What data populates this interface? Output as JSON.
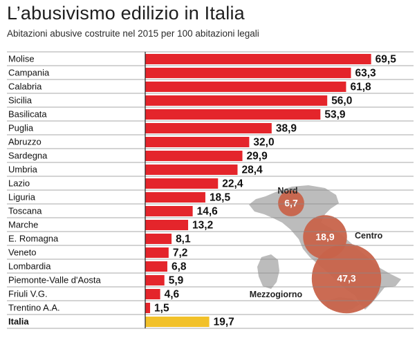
{
  "chart_data": {
    "type": "bar",
    "orientation": "horizontal",
    "title": "L’abusivismo edilizio in Italia",
    "subtitle": "Abitazioni abusive costruite nel 2015 per 100 abitazioni legali",
    "categories": [
      "Molise",
      "Campania",
      "Calabria",
      "Sicilia",
      "Basilicata",
      "Puglia",
      "Abruzzo",
      "Sardegna",
      "Umbria",
      "Lazio",
      "Liguria",
      "Toscana",
      "Marche",
      "E. Romagna",
      "Veneto",
      "Lombardia",
      "Piemonte-Valle d'Aosta",
      "Friuli V.G.",
      "Trentino A.A.",
      "Italia"
    ],
    "values": [
      69.5,
      63.3,
      61.8,
      56.0,
      53.9,
      38.9,
      32.0,
      29.9,
      28.4,
      22.4,
      18.5,
      14.6,
      13.2,
      8.1,
      7.2,
      6.8,
      5.9,
      4.6,
      1.5,
      19.7
    ],
    "value_labels": [
      "69,5",
      "63,3",
      "61,8",
      "56,0",
      "53,9",
      "38,9",
      "32,0",
      "29,9",
      "28,4",
      "22,4",
      "18,5",
      "14,6",
      "13,2",
      "8,1",
      "7,2",
      "6,8",
      "5,9",
      "4,6",
      "1,5",
      "19,7"
    ],
    "highlight_category": "Italia",
    "colors": {
      "bar": "#e4252b",
      "highlight": "#f2c12a",
      "bubble": "#c8634a",
      "map": "#bdbdbd"
    },
    "legend": "none",
    "grid": false,
    "inset_map": {
      "description_type": "bubble-map",
      "regions": [
        {
          "name": "Nord",
          "value": 6.7,
          "label": "6,7"
        },
        {
          "name": "Centro",
          "value": 18.9,
          "label": "18,9"
        },
        {
          "name": "Mezzogiorno",
          "value": 47.3,
          "label": "47,3"
        }
      ]
    }
  }
}
